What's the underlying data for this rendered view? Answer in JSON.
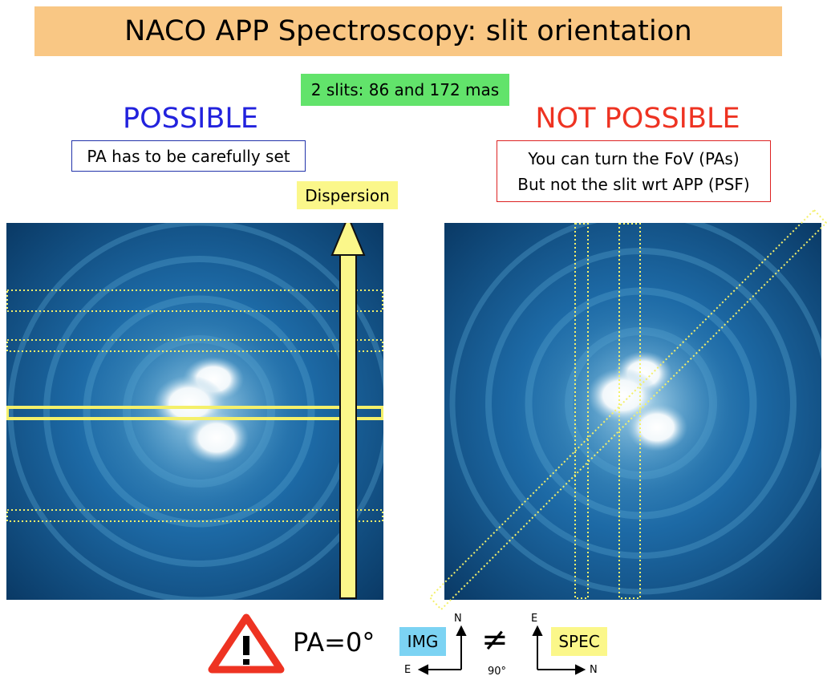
{
  "header": {
    "title": "NACO APP Spectroscopy: slit orientation"
  },
  "slits_badge": "2 slits: 86 and 172 mas",
  "left": {
    "heading": "POSSIBLE",
    "note": "PA has to be carefully set",
    "dispersion_label": "Dispersion"
  },
  "right": {
    "heading": "NOT POSSIBLE",
    "note_line1": "You can turn the FoV (PAs)",
    "note_line2": "But not the slit wrt APP (PSF)"
  },
  "bottom": {
    "warning_icon": "warning-triangle-icon",
    "pa_text": "PA=0°",
    "img_tag": "IMG",
    "spec_tag": "SPEC",
    "neq_symbol": "≠",
    "img_axis_up": "N",
    "img_axis_left": "E",
    "spec_axis_up": "E",
    "spec_axis_right": "N",
    "rotation_label": "90°"
  },
  "colors": {
    "title_bg": "#f9c784",
    "badge_bg": "#62e36b",
    "possible": "#2222dd",
    "not_possible": "#ee3322",
    "highlight_yellow": "#fbf78a",
    "slit_yellow": "#f4f06a",
    "img_tag_bg": "#7cd3f3"
  }
}
